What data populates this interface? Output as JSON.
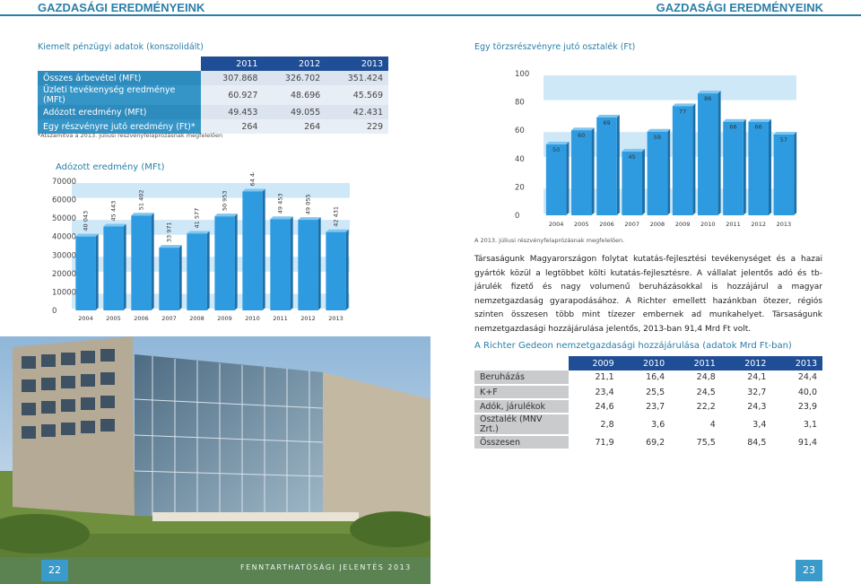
{
  "header": {
    "left_title": "GAZDASÁGI EREDMÉNYEINK",
    "right_title": "GAZDASÁGI EREDMÉNYEINK"
  },
  "key_table": {
    "title": "Kiemelt pénzügyi adatok (konszolidált)",
    "years": [
      "2011",
      "2012",
      "2013"
    ],
    "rows": [
      {
        "label": "Összes árbevétel (MFt)",
        "values": [
          "307.868",
          "326.702",
          "351.424"
        ]
      },
      {
        "label": "Üzleti tevékenység eredménye (MFt)",
        "values": [
          "60.927",
          "48.696",
          "45.569"
        ]
      },
      {
        "label": "Adózott eredmény (MFt)",
        "values": [
          "49.453",
          "49.055",
          "42.431"
        ]
      },
      {
        "label": "Egy részvényre jutó eredmény (Ft)*",
        "values": [
          "264",
          "264",
          "229"
        ]
      }
    ],
    "note": "*Átszámítva a 2013. júliusi részvényfelaprózásnak megfelelően"
  },
  "chart_data": [
    {
      "type": "bar",
      "title": "Adózott eredmény (MFt)",
      "categories": [
        "2004",
        "2005",
        "2006",
        "2007",
        "2008",
        "2009",
        "2010",
        "2011",
        "2012",
        "2013"
      ],
      "values": [
        40043,
        45443,
        51402,
        33971,
        41577,
        50953,
        64440,
        49453,
        49055,
        42431
      ],
      "value_labels": [
        "40 043",
        "45 443",
        "51 402",
        "33 971",
        "41 577",
        "50 953",
        "64 440",
        "49 453",
        "49 055",
        "42 431"
      ],
      "y_ticks": [
        "0",
        "10000",
        "20000",
        "30000",
        "40000",
        "50000",
        "60000",
        "70000"
      ],
      "ylim": [
        0,
        70000
      ],
      "grid": true,
      "colors": {
        "bar": "#2e9be0",
        "grid_band": "#cfe8f8"
      }
    },
    {
      "type": "bar",
      "title": "Egy törzsrészvényre jutó osztalék (Ft)",
      "categories": [
        "2004",
        "2005",
        "2006",
        "2007",
        "2008",
        "2009",
        "2010",
        "2011",
        "2012",
        "2013"
      ],
      "values": [
        50,
        60,
        69,
        45,
        59,
        77,
        86,
        66,
        66,
        57
      ],
      "value_labels": [
        "50",
        "60",
        "69",
        "45",
        "59",
        "77",
        "86",
        "66",
        "66",
        "57"
      ],
      "y_ticks": [
        "0",
        "20",
        "40",
        "60",
        "80",
        "100"
      ],
      "ylim": [
        0,
        100
      ],
      "grid": true,
      "note": "A 2013. júliusi részvényfelaprózásnak megfelelően.",
      "colors": {
        "bar": "#2e9be0",
        "grid_band": "#cfe8f8"
      }
    }
  ],
  "body_text": "Társaságunk Magyarországon folytat kutatás-fejlesztési tevékenységet és a hazai gyártók közül a legtöbbet költi kutatás-fejlesztésre. A vállalat jelentős adó és tb-járulék fizető és nagy volumenű beruházásokkal is hozzájárul a magyar nemzetgazdaság gyarapodásához. A Richter emellett hazánkban ötezer, régiós szinten összesen több mint tízezer embernek ad munkahelyet. Társaságunk nemzetgazdasági hozzájárulása jelentős, 2013-ban 91,4 Mrd Ft volt.",
  "contrib_table": {
    "title": "A Richter Gedeon nemzetgazdasági hozzájárulása (adatok Mrd Ft-ban)",
    "years": [
      "2009",
      "2010",
      "2011",
      "2012",
      "2013"
    ],
    "rows": [
      {
        "label": "Beruházás",
        "values": [
          "21,1",
          "16,4",
          "24,8",
          "24,1",
          "24,4"
        ]
      },
      {
        "label": "K+F",
        "values": [
          "23,4",
          "25,5",
          "24,5",
          "32,7",
          "40,0"
        ]
      },
      {
        "label": "Adók, járulékok",
        "values": [
          "24,6",
          "23,7",
          "22,2",
          "24,3",
          "23,9"
        ]
      },
      {
        "label": "Osztalék (MNV Zrt.)",
        "values": [
          "2,8",
          "3,6",
          "4",
          "3,4",
          "3,1"
        ]
      },
      {
        "label": "Összesen",
        "values": [
          "71,9",
          "69,2",
          "75,5",
          "84,5",
          "91,4"
        ]
      }
    ]
  },
  "footer": {
    "page_left": "22",
    "page_right": "23",
    "caption": "FENNTARTHATÓSÁGI JELENTÉS 2013"
  },
  "colors": {
    "accent": "#2a7fa8",
    "table_header": "#1f4e96",
    "label_cell": "#2e8bbd"
  }
}
